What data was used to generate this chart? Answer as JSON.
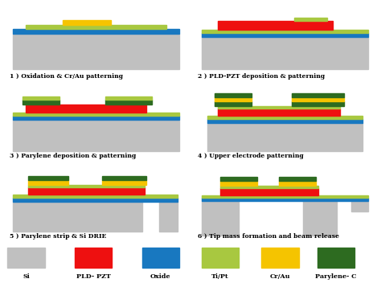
{
  "colors": {
    "Si": "#c0c0c0",
    "PLD_PZT": "#ee1010",
    "Oxide": "#1878c0",
    "TiPt": "#a8c840",
    "CrAu": "#f5c400",
    "Parylene": "#2d6b20",
    "bg": "#ffffff"
  },
  "legend_items": [
    {
      "label": "Si",
      "color": "#c0c0c0"
    },
    {
      "label": "PLD- PZT",
      "color": "#ee1010"
    },
    {
      "label": "Oxide",
      "color": "#1878c0"
    },
    {
      "label": "Ti/Pt",
      "color": "#a8c840"
    },
    {
      "label": "Cr/Au",
      "color": "#f5c400"
    },
    {
      "label": "Parylene- C",
      "color": "#2d6b20"
    }
  ],
  "step_labels": [
    "1 ) Oxidation & Cr/Au patterning",
    "2 ) PLD-PZT deposition & patterning",
    "3 ) Parylene deposition & patterning",
    "4 ) Upper electrode patterning",
    "5 ) Parylene strip & Si DRIE",
    "6 ) Tip mass formation and beam release"
  ]
}
